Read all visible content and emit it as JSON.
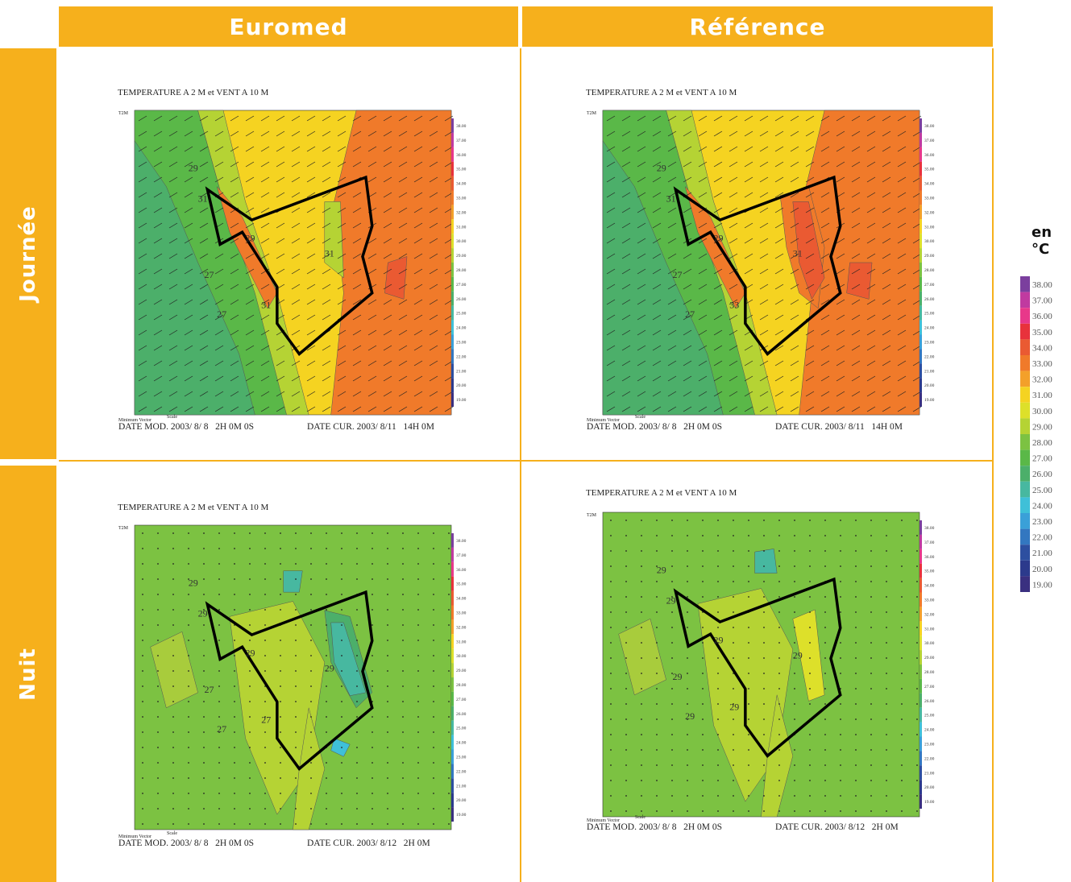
{
  "header": {
    "columns": [
      "Euromed",
      "Référence"
    ],
    "rows": [
      "Journée",
      "Nuit"
    ]
  },
  "legend": {
    "unit": "en °C",
    "items": [
      {
        "label": "38.00",
        "color": "#7b3f9e"
      },
      {
        "label": "37.00",
        "color": "#c03aa0"
      },
      {
        "label": "36.00",
        "color": "#e8388a"
      },
      {
        "label": "35.00",
        "color": "#e8323c"
      },
      {
        "label": "34.00",
        "color": "#ea5a32"
      },
      {
        "label": "33.00",
        "color": "#f07a2a"
      },
      {
        "label": "32.00",
        "color": "#f3a02a"
      },
      {
        "label": "31.00",
        "color": "#f5d321"
      },
      {
        "label": "30.00",
        "color": "#dde02a"
      },
      {
        "label": "29.00",
        "color": "#b5d334"
      },
      {
        "label": "28.00",
        "color": "#7cc242"
      },
      {
        "label": "27.00",
        "color": "#5ab848"
      },
      {
        "label": "26.00",
        "color": "#4caf6a"
      },
      {
        "label": "25.00",
        "color": "#47b8a0"
      },
      {
        "label": "24.00",
        "color": "#3fc0d8"
      },
      {
        "label": "23.00",
        "color": "#3aa0d8"
      },
      {
        "label": "22.00",
        "color": "#3377c0"
      },
      {
        "label": "21.00",
        "color": "#2d4fa0"
      },
      {
        "label": "20.00",
        "color": "#2c3a8c"
      },
      {
        "label": "19.00",
        "color": "#3a3080"
      }
    ]
  },
  "panels": [
    {
      "title": "TEMPERATURE A 2 M et VENT A 10 M",
      "variable": "T2M",
      "date_mod": "DATE MOD. 2003/ 8/ 8   2H 0M 0S",
      "date_cur": "DATE CUR. 2003/ 8/11   14H 0M",
      "footer": [
        "Minimum Vector",
        "Scale"
      ],
      "contour_labels": [
        "31",
        "31",
        "31",
        "29",
        "29",
        "27",
        "27"
      ]
    },
    {
      "title": "TEMPERATURE A 2 M et VENT A 10 M",
      "variable": "T2M",
      "date_mod": "DATE MOD. 2003/ 8/ 8   2H 0M 0S",
      "date_cur": "DATE CUR. 2003/ 8/11   14H 0M",
      "footer": [
        "Minimum Vector",
        "Scale"
      ],
      "contour_labels": [
        "31",
        "31",
        "33",
        "29",
        "29",
        "27",
        "27"
      ]
    },
    {
      "title": "TEMPERATURE A 2 M et VENT A 10 M",
      "variable": "T2M",
      "date_mod": "DATE MOD. 2003/ 8/ 8   2H 0M 0S",
      "date_cur": "DATE CUR. 2003/ 8/12   2H 0M",
      "footer": [
        "Minimum Vector",
        "Scale"
      ],
      "contour_labels": [
        "29",
        "29",
        "27",
        "29",
        "29",
        "27",
        "27"
      ]
    },
    {
      "title": "TEMPERATURE A 2 M et VENT A 10 M",
      "variable": "T2M",
      "date_mod": "DATE MOD. 2003/ 8/ 8   2H 0M 0S",
      "date_cur": "DATE CUR. 2003/ 8/12   2H 0M",
      "footer": [
        "Minimum Vector",
        "Scale"
      ],
      "contour_labels": [
        "29",
        "29",
        "29",
        "29",
        "29",
        "29",
        "29"
      ]
    }
  ]
}
